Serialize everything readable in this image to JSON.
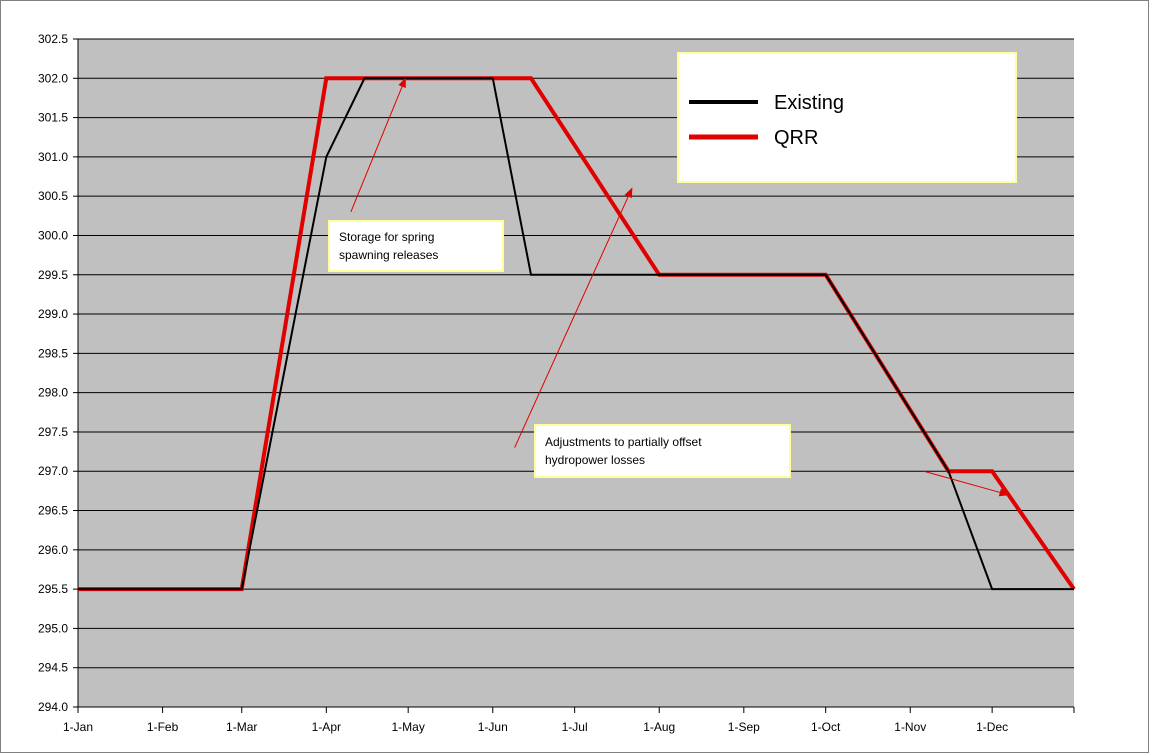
{
  "chart_data": {
    "type": "line",
    "title": "",
    "xlabel": "",
    "ylabel": "",
    "x_tick_labels": [
      "1-Jan",
      "1-Feb",
      "1-Mar",
      "1-Apr",
      "1-May",
      "1-Jun",
      "1-Jul",
      "1-Aug",
      "1-Sep",
      "1-Oct",
      "1-Nov",
      "1-Dec"
    ],
    "x_tick_dates": [
      "2000-01-01",
      "2000-02-01",
      "2000-03-01",
      "2000-04-01",
      "2000-05-01",
      "2000-06-01",
      "2000-07-01",
      "2000-08-01",
      "2000-09-01",
      "2000-10-01",
      "2000-11-01",
      "2000-12-01"
    ],
    "xlim": [
      "2000-01-01",
      "2000-12-31"
    ],
    "ylim": [
      294.0,
      302.5
    ],
    "y_tick_step": 0.5,
    "y_tick_labels": [
      "294.0",
      "294.5",
      "295.0",
      "295.5",
      "296.0",
      "296.5",
      "297.0",
      "297.5",
      "298.0",
      "298.5",
      "299.0",
      "299.5",
      "300.0",
      "300.5",
      "301.0",
      "301.5",
      "302.0",
      "302.5"
    ],
    "grid": true,
    "background_color": "#c0c0c0",
    "legend": {
      "placement": "top-right",
      "background_color": "#ffffff",
      "border_color": "#ffff99"
    },
    "series": [
      {
        "name": "Existing",
        "color": "#000000",
        "points": [
          {
            "x": "2000-01-01",
            "y": 295.5
          },
          {
            "x": "2000-03-01",
            "y": 295.5
          },
          {
            "x": "2000-04-01",
            "y": 301.0
          },
          {
            "x": "2000-04-15",
            "y": 302.0
          },
          {
            "x": "2000-06-01",
            "y": 302.0
          },
          {
            "x": "2000-06-15",
            "y": 299.5
          },
          {
            "x": "2000-10-01",
            "y": 299.5
          },
          {
            "x": "2000-11-15",
            "y": 297.0
          },
          {
            "x": "2000-12-01",
            "y": 295.5
          },
          {
            "x": "2000-12-31",
            "y": 295.5
          }
        ]
      },
      {
        "name": "QRR",
        "color": "#e00000",
        "points": [
          {
            "x": "2000-01-01",
            "y": 295.5
          },
          {
            "x": "2000-03-01",
            "y": 295.5
          },
          {
            "x": "2000-04-01",
            "y": 302.0
          },
          {
            "x": "2000-06-15",
            "y": 302.0
          },
          {
            "x": "2000-08-01",
            "y": 299.5
          },
          {
            "x": "2000-10-01",
            "y": 299.5
          },
          {
            "x": "2000-11-15",
            "y": 297.0
          },
          {
            "x": "2000-12-01",
            "y": 297.0
          },
          {
            "x": "2000-12-31",
            "y": 295.5
          }
        ]
      }
    ],
    "annotations": [
      {
        "lines": [
          "Storage for spring",
          "spawning releases"
        ],
        "background_color": "#ffffff",
        "border_color": "#ffff99",
        "arrow_color": "#e00000",
        "arrows": [
          {
            "from": {
              "x": "2000-04-10",
              "y": 300.3
            },
            "to": {
              "x": "2000-04-30",
              "y": 302.0
            }
          }
        ]
      },
      {
        "lines": [
          "Adjustments to partially offset",
          "hydropower losses"
        ],
        "background_color": "#ffffff",
        "border_color": "#ffff99",
        "arrow_color": "#e00000",
        "arrows": [
          {
            "from": {
              "x": "2000-06-09",
              "y": 297.3
            },
            "to": {
              "x": "2000-07-22",
              "y": 300.6
            }
          },
          {
            "from": {
              "x": "2000-11-06",
              "y": 297.0
            },
            "to": {
              "x": "2000-12-07",
              "y": 296.7
            }
          }
        ]
      }
    ]
  }
}
